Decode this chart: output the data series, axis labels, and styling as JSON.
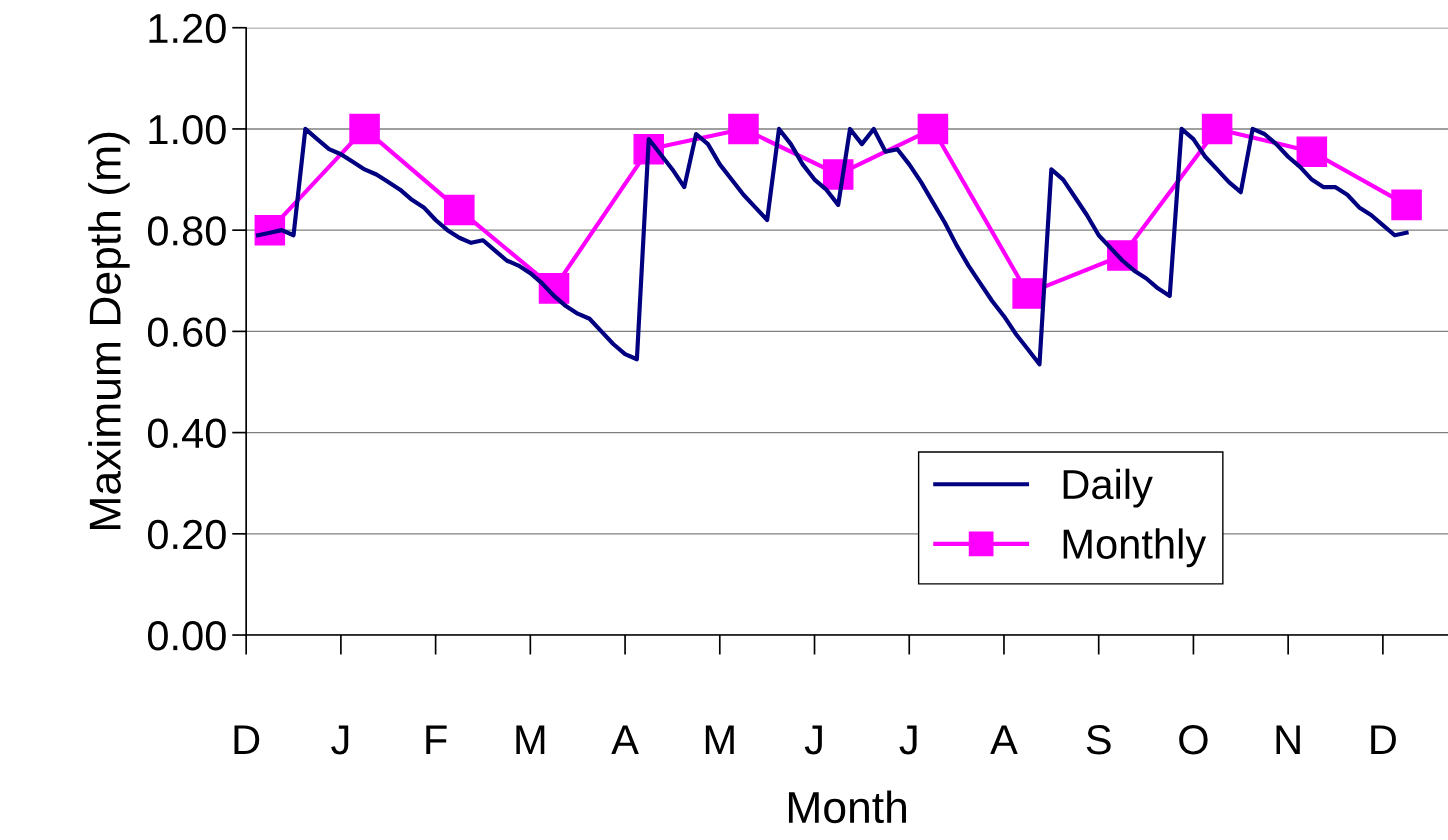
{
  "chart_data": {
    "type": "line",
    "xlabel": "Month",
    "ylabel": "Maximum Depth (m)",
    "categories": [
      "D",
      null,
      null,
      null,
      null,
      null,
      null,
      null,
      "J",
      null,
      null,
      null,
      null,
      null,
      null,
      null,
      "F",
      null,
      null,
      null,
      null,
      null,
      null,
      null,
      "M",
      null,
      null,
      null,
      null,
      null,
      null,
      null,
      "A",
      null,
      null,
      null,
      null,
      null,
      null,
      null,
      "M",
      null,
      null,
      null,
      null,
      null,
      null,
      null,
      "J",
      null,
      null,
      null,
      null,
      null,
      null,
      null,
      "J",
      null,
      null,
      null,
      null,
      null,
      null,
      null,
      "A",
      null,
      null,
      null,
      null,
      null,
      null,
      null,
      "S",
      null,
      null,
      null,
      null,
      null,
      null,
      null,
      "O",
      null,
      null,
      null,
      null,
      null,
      null,
      null,
      "N",
      null,
      null,
      null,
      null,
      null,
      null,
      null,
      "D",
      null,
      null,
      null,
      null,
      null
    ],
    "ylim": [
      0,
      1.2
    ],
    "yticks": [
      {
        "value": 0,
        "label": "0.00"
      },
      {
        "value": 0.2,
        "label": "0.20"
      },
      {
        "value": 0.4,
        "label": "0.40"
      },
      {
        "value": 0.6,
        "label": "0.60"
      },
      {
        "value": 0.8,
        "label": "0.80"
      },
      {
        "value": 1.0,
        "label": "1.00"
      },
      {
        "value": 1.2,
        "label": "1.20"
      }
    ],
    "grid": "y",
    "legend": "bottom right",
    "series": [
      {
        "name": "Daily",
        "color": "#000080",
        "marker": "none",
        "values": [
          null,
          0.79,
          0.795,
          0.8,
          0.79,
          1.0,
          0.98,
          0.96,
          0.95,
          0.935,
          0.92,
          0.91,
          0.895,
          0.88,
          0.86,
          0.845,
          0.82,
          0.8,
          0.785,
          0.775,
          0.78,
          0.76,
          0.74,
          0.73,
          0.715,
          0.695,
          0.67,
          0.65,
          0.635,
          0.625,
          0.6,
          0.575,
          0.555,
          0.545,
          0.98,
          0.95,
          0.92,
          0.885,
          0.99,
          0.97,
          0.93,
          0.9,
          0.87,
          0.845,
          0.82,
          1.0,
          0.97,
          0.93,
          0.9,
          0.88,
          0.85,
          1.0,
          0.97,
          1.0,
          0.955,
          0.96,
          0.93,
          0.895,
          0.855,
          0.815,
          0.77,
          0.73,
          0.695,
          0.66,
          0.63,
          0.595,
          0.565,
          0.535,
          0.92,
          0.9,
          0.865,
          0.83,
          0.79,
          0.765,
          0.74,
          0.72,
          0.705,
          0.685,
          0.67,
          1.0,
          0.98,
          0.945,
          0.92,
          0.895,
          0.875,
          1.0,
          0.99,
          0.97,
          0.945,
          0.925,
          0.9,
          0.885,
          0.885,
          0.87,
          0.845,
          0.83,
          0.81,
          0.79,
          0.795,
          null,
          null,
          null
        ]
      },
      {
        "name": "Monthly",
        "color": "#ff00ff",
        "marker": "square",
        "values": [
          null,
          null,
          0.8,
          null,
          null,
          null,
          null,
          null,
          null,
          null,
          1.0,
          null,
          null,
          null,
          null,
          null,
          null,
          null,
          0.84,
          null,
          null,
          null,
          null,
          null,
          null,
          null,
          0.685,
          null,
          null,
          null,
          null,
          null,
          null,
          null,
          0.96,
          null,
          null,
          null,
          null,
          null,
          null,
          null,
          1.0,
          null,
          null,
          null,
          null,
          null,
          null,
          null,
          0.91,
          null,
          null,
          null,
          null,
          null,
          null,
          null,
          1.0,
          null,
          null,
          null,
          null,
          null,
          null,
          null,
          0.675,
          null,
          null,
          null,
          null,
          null,
          null,
          null,
          0.75,
          null,
          null,
          null,
          null,
          null,
          null,
          null,
          1.0,
          null,
          null,
          null,
          null,
          null,
          null,
          null,
          0.955,
          null,
          null,
          null,
          null,
          null,
          null,
          null,
          0.85,
          null,
          null,
          null
        ]
      }
    ]
  }
}
